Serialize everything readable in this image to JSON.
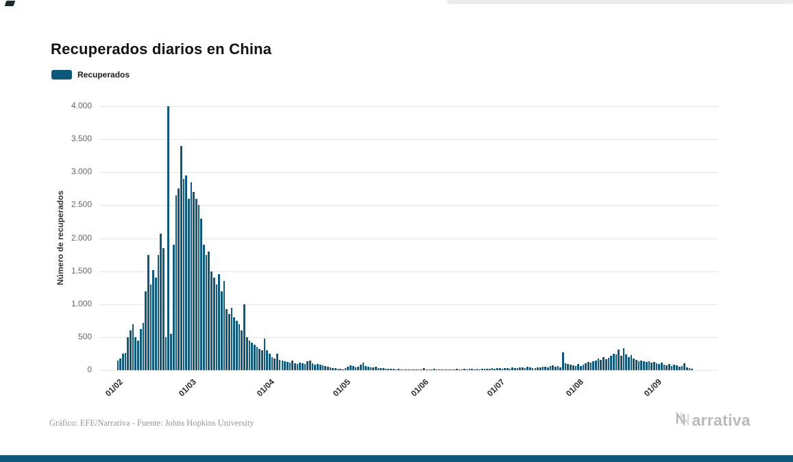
{
  "header": {
    "title": "Recuperados diarios en China"
  },
  "legend": {
    "label": "Recuperados",
    "color": "#0e587c"
  },
  "theme": {
    "accent": "#0e587c",
    "grid": "#e6e6e6",
    "footer_bar": "#0e587c"
  },
  "footer": {
    "credit": "Gráfico: EFE/Narrativa - Fuente: Johns Hopkins University",
    "brand": "Narrativa"
  },
  "chart_data": {
    "type": "bar",
    "title": "Recuperados diarios en China",
    "xlabel": "",
    "ylabel": "Número de recuperados",
    "ylim": [
      0,
      4000
    ],
    "grid": true,
    "legend_position": "top-left",
    "yticks": [
      {
        "value": 0,
        "label": "0"
      },
      {
        "value": 500,
        "label": "500"
      },
      {
        "value": 1000,
        "label": "1.000"
      },
      {
        "value": 1500,
        "label": "1.500"
      },
      {
        "value": 2000,
        "label": "2.000"
      },
      {
        "value": 2500,
        "label": "2.500"
      },
      {
        "value": 3000,
        "label": "3.000"
      },
      {
        "value": 3500,
        "label": "3.500"
      },
      {
        "value": 4000,
        "label": "4.000"
      }
    ],
    "xticks": [
      {
        "label": "01/02",
        "day": 0
      },
      {
        "label": "01/03",
        "day": 29
      },
      {
        "label": "01/04",
        "day": 60
      },
      {
        "label": "01/05",
        "day": 90
      },
      {
        "label": "01/06",
        "day": 121
      },
      {
        "label": "01/07",
        "day": 151
      },
      {
        "label": "01/08",
        "day": 182
      },
      {
        "label": "01/09",
        "day": 213
      }
    ],
    "series": [
      {
        "name": "Recuperados",
        "color": "#0e587c",
        "values": [
          150,
          180,
          250,
          260,
          500,
          600,
          700,
          500,
          450,
          620,
          720,
          1200,
          1750,
          1300,
          1520,
          1400,
          1750,
          2070,
          1850,
          500,
          4000,
          550,
          1900,
          2650,
          2750,
          3400,
          2900,
          2950,
          2600,
          2850,
          2700,
          2600,
          2500,
          2300,
          1900,
          1750,
          1800,
          1500,
          1400,
          1300,
          1450,
          1200,
          1350,
          920,
          850,
          950,
          800,
          750,
          700,
          600,
          1000,
          500,
          450,
          420,
          380,
          350,
          320,
          300,
          480,
          300,
          250,
          200,
          180,
          250,
          160,
          150,
          130,
          120,
          110,
          150,
          100,
          90,
          110,
          100,
          90,
          130,
          150,
          100,
          80,
          90,
          80,
          70,
          60,
          50,
          40,
          35,
          30,
          25,
          20,
          15,
          30,
          50,
          70,
          60,
          40,
          50,
          80,
          110,
          60,
          50,
          45,
          40,
          50,
          35,
          30,
          30,
          25,
          20,
          25,
          20,
          15,
          20,
          15,
          10,
          15,
          10,
          10,
          15,
          10,
          10,
          10,
          30,
          10,
          15,
          10,
          20,
          10,
          15,
          10,
          10,
          15,
          10,
          10,
          15,
          20,
          10,
          15,
          20,
          15,
          20,
          25,
          15,
          20,
          15,
          20,
          25,
          20,
          25,
          30,
          25,
          30,
          30,
          25,
          35,
          30,
          25,
          40,
          35,
          30,
          45,
          40,
          35,
          50,
          40,
          35,
          30,
          45,
          40,
          50,
          55,
          45,
          60,
          70,
          55,
          60,
          45,
          270,
          100,
          90,
          85,
          70,
          60,
          90,
          60,
          80,
          100,
          120,
          110,
          130,
          150,
          180,
          160,
          200,
          170,
          190,
          220,
          250,
          240,
          310,
          220,
          330,
          240,
          200,
          230,
          180,
          160,
          140,
          150,
          130,
          120,
          140,
          110,
          120,
          100,
          90,
          110,
          80,
          70,
          90,
          60,
          80,
          70,
          50,
          60,
          100,
          40,
          30,
          25
        ]
      }
    ]
  }
}
